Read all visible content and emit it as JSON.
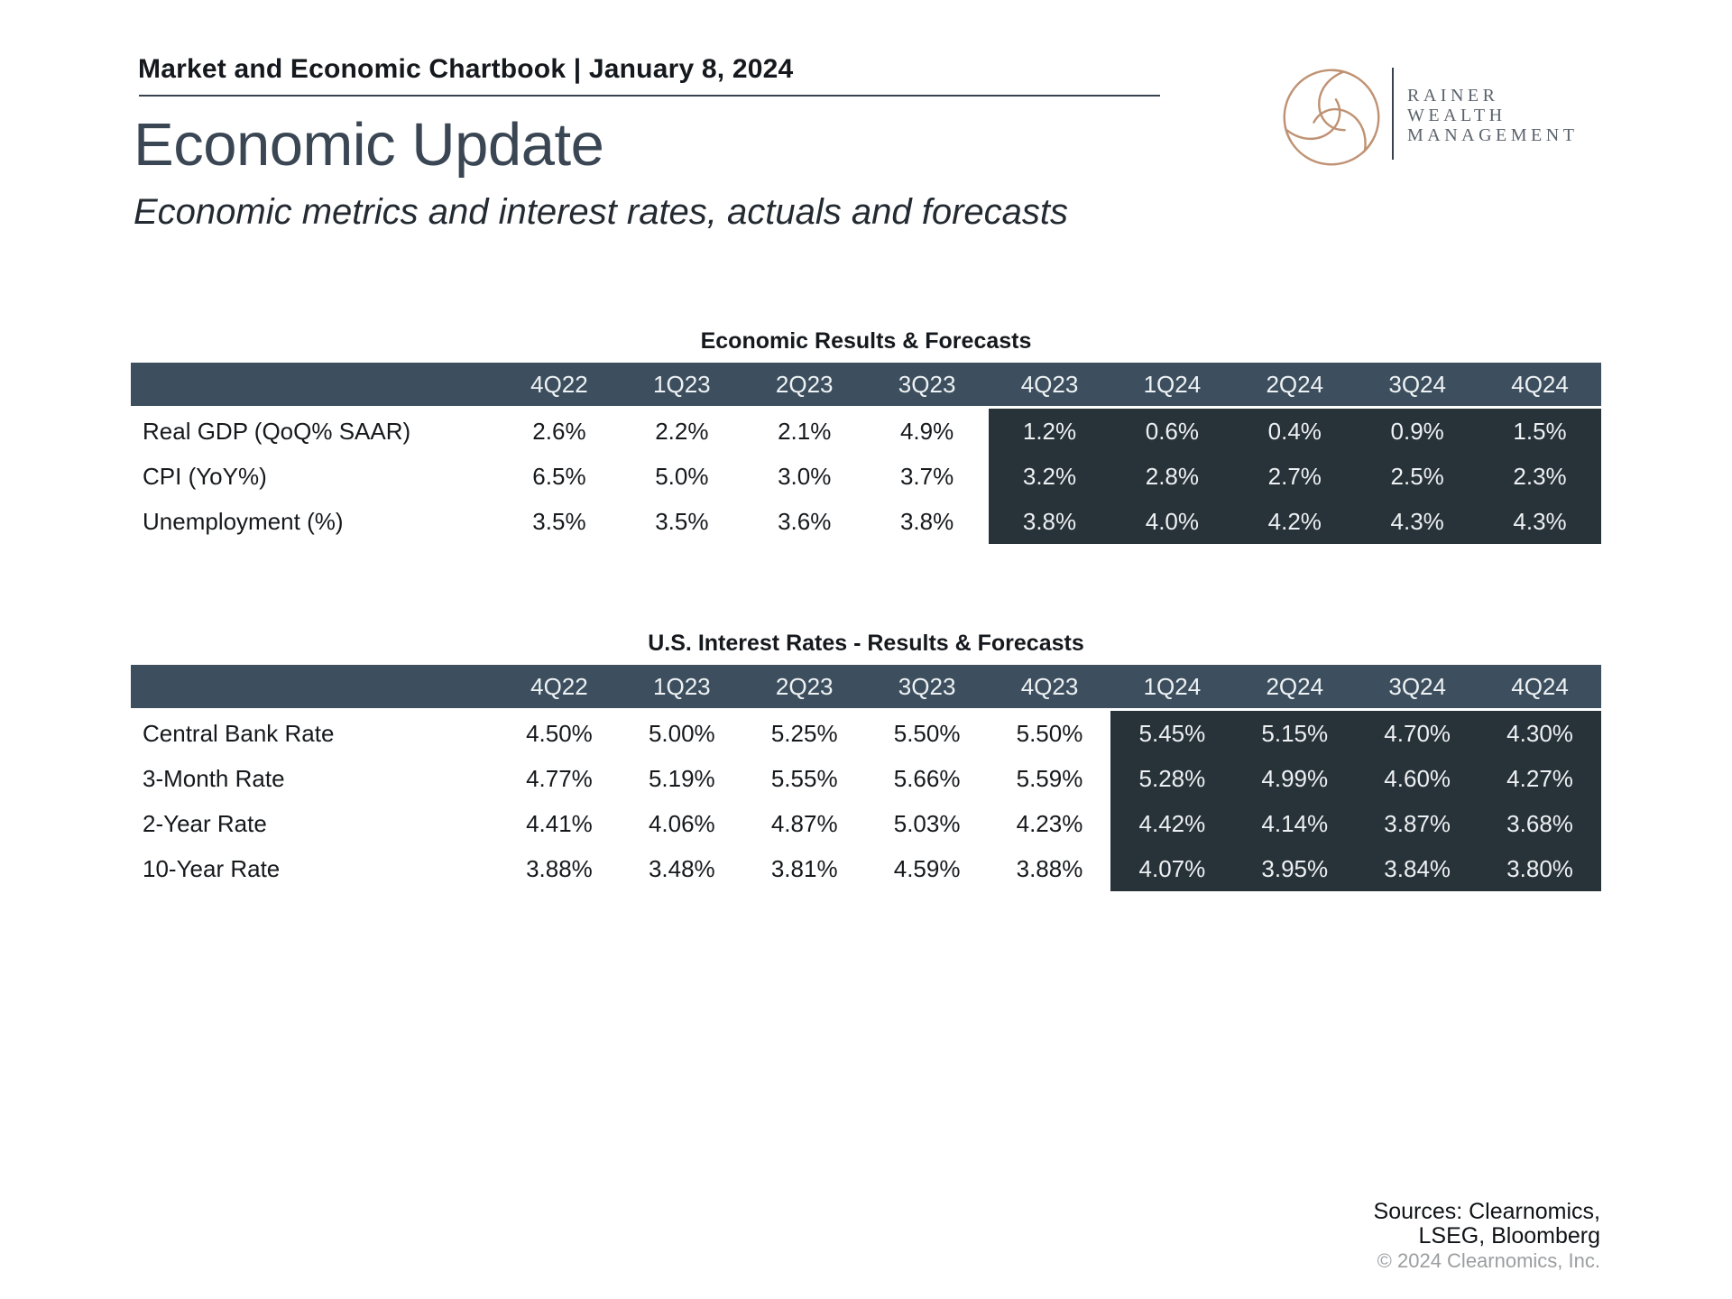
{
  "page": {
    "chartbook_label": "Market and Economic Chartbook | January 8, 2024",
    "title": "Economic Update",
    "subtitle": "Economic metrics and interest rates, actuals and forecasts"
  },
  "logo": {
    "swirl_icon": "spiral-swirl",
    "name_lines": [
      "RAINER",
      "WEALTH",
      "MANAGEMENT"
    ]
  },
  "tables": {
    "economic": {
      "title": "Economic Results & Forecasts",
      "columns": [
        "4Q22",
        "1Q23",
        "2Q23",
        "3Q23",
        "4Q23",
        "1Q24",
        "2Q24",
        "3Q24",
        "4Q24"
      ],
      "forecast_start_index": 4,
      "rows": [
        {
          "label": "Real GDP (QoQ% SAAR)",
          "values": [
            "2.6%",
            "2.2%",
            "2.1%",
            "4.9%",
            "1.2%",
            "0.6%",
            "0.4%",
            "0.9%",
            "1.5%"
          ]
        },
        {
          "label": "CPI (YoY%)",
          "values": [
            "6.5%",
            "5.0%",
            "3.0%",
            "3.7%",
            "3.2%",
            "2.8%",
            "2.7%",
            "2.5%",
            "2.3%"
          ]
        },
        {
          "label": "Unemployment (%)",
          "values": [
            "3.5%",
            "3.5%",
            "3.6%",
            "3.8%",
            "3.8%",
            "4.0%",
            "4.2%",
            "4.3%",
            "4.3%"
          ]
        }
      ]
    },
    "rates": {
      "title": "U.S. Interest Rates - Results & Forecasts",
      "columns": [
        "4Q22",
        "1Q23",
        "2Q23",
        "3Q23",
        "4Q23",
        "1Q24",
        "2Q24",
        "3Q24",
        "4Q24"
      ],
      "forecast_start_index": 5,
      "rows": [
        {
          "label": "Central Bank Rate",
          "values": [
            "4.50%",
            "5.00%",
            "5.25%",
            "5.50%",
            "5.50%",
            "5.45%",
            "5.15%",
            "4.70%",
            "4.30%"
          ]
        },
        {
          "label": "3-Month Rate",
          "values": [
            "4.77%",
            "5.19%",
            "5.55%",
            "5.66%",
            "5.59%",
            "5.28%",
            "4.99%",
            "4.60%",
            "4.27%"
          ]
        },
        {
          "label": "2-Year Rate",
          "values": [
            "4.41%",
            "4.06%",
            "4.87%",
            "5.03%",
            "4.23%",
            "4.42%",
            "4.14%",
            "3.87%",
            "3.68%"
          ]
        },
        {
          "label": "10-Year Rate",
          "values": [
            "3.88%",
            "3.48%",
            "3.81%",
            "4.59%",
            "3.88%",
            "4.07%",
            "3.95%",
            "3.84%",
            "3.80%"
          ]
        }
      ]
    }
  },
  "footer": {
    "sources_line1": "Sources: Clearnomics,",
    "sources_line2": "LSEG, Bloomberg",
    "copyright": "© 2024 Clearnomics, Inc."
  },
  "colors": {
    "header_bar": "#3d4f5e",
    "forecast_bg": "#273239",
    "title_text": "#3a4653",
    "rule_line": "#36434f",
    "logo_copper": "#bf9273",
    "logo_text": "#5a626b",
    "body_text": "#16191c",
    "header_cell_text": "#eef2f4",
    "muted_text": "#9b9ea0"
  }
}
